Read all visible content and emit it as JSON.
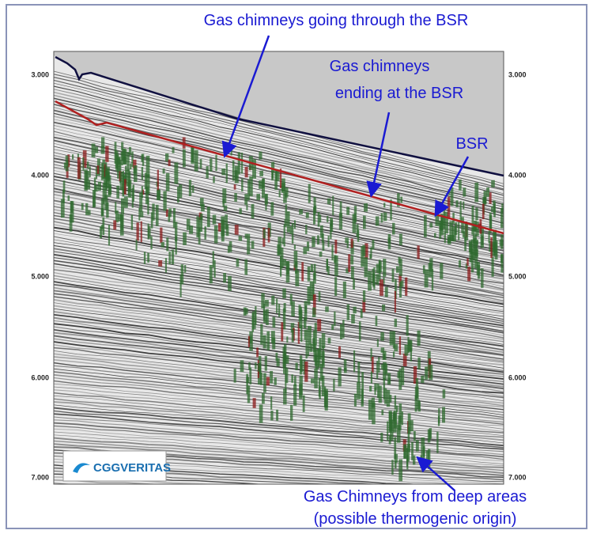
{
  "annotations": [
    "Gas chimneys going through the BSR",
    "Gas chimneys",
    "ending at the BSR",
    "BSR",
    "Gas Chimneys from deep areas",
    "(possible thermogenic origin)"
  ],
  "left_axis": [
    "3.000",
    "4.000",
    "5.000",
    "6.000",
    "7.000"
  ],
  "right_axis": [
    "3.000",
    "4.000",
    "5.000",
    "6.000",
    "7.000"
  ],
  "logo": "CGGVERITAS"
}
